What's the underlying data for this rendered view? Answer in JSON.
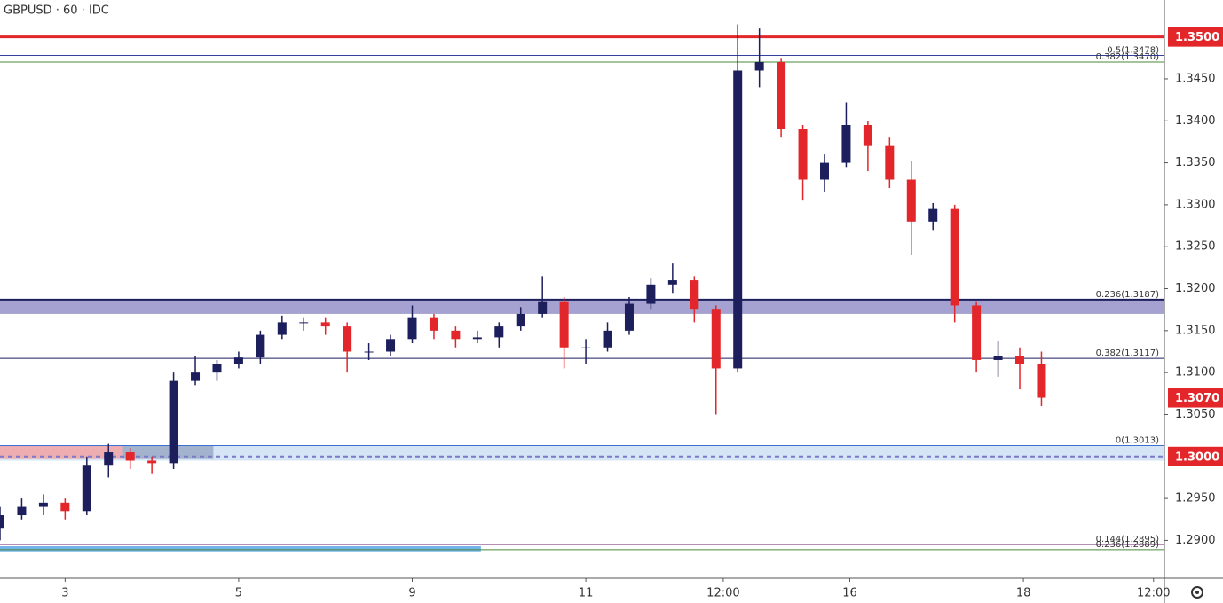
{
  "chart_data": {
    "type": "candlestick",
    "title": "GBPUSD · 60 · IDC",
    "up_color": "#1c1f5c",
    "down_color": "#e3262a",
    "x": [
      0,
      6,
      12,
      18,
      24,
      30,
      36,
      42,
      48,
      54,
      60,
      66,
      72,
      78,
      84,
      90,
      96,
      102,
      108,
      114,
      120,
      126,
      132,
      138,
      144,
      150,
      156,
      162,
      168,
      174,
      180,
      186,
      192,
      198,
      204,
      210,
      216,
      222,
      228,
      234,
      240,
      246,
      252,
      258,
      264,
      270,
      276,
      282,
      288
    ],
    "open": [
      1.2915,
      1.293,
      1.294,
      1.2945,
      1.2935,
      1.299,
      1.3005,
      1.2995,
      1.2992,
      1.309,
      1.31,
      1.311,
      1.3118,
      1.3145,
      1.316,
      1.316,
      1.3155,
      1.3125,
      1.3125,
      1.314,
      1.3165,
      1.315,
      1.314,
      1.3142,
      1.3155,
      1.317,
      1.3185,
      1.313,
      1.313,
      1.315,
      1.3182,
      1.3205,
      1.321,
      1.3175,
      1.3105,
      1.346,
      1.347,
      1.339,
      1.333,
      1.335,
      1.3395,
      1.337,
      1.333,
      1.328,
      1.3295,
      1.318,
      1.3115,
      1.312,
      1.311
    ],
    "high": [
      1.294,
      1.295,
      1.2955,
      1.295,
      1.3,
      1.3015,
      1.301,
      1.3,
      1.31,
      1.312,
      1.3115,
      1.3125,
      1.315,
      1.3168,
      1.3165,
      1.3165,
      1.316,
      1.3135,
      1.3145,
      1.318,
      1.317,
      1.3155,
      1.315,
      1.316,
      1.3178,
      1.3215,
      1.319,
      1.314,
      1.316,
      1.319,
      1.3212,
      1.323,
      1.3215,
      1.318,
      1.3515,
      1.351,
      1.3475,
      1.3395,
      1.336,
      1.3422,
      1.34,
      1.338,
      1.3352,
      1.3302,
      1.33,
      1.3185,
      1.3138,
      1.313,
      1.3125
    ],
    "low": [
      1.29,
      1.2925,
      1.293,
      1.2925,
      1.293,
      1.2975,
      1.2985,
      1.298,
      1.2985,
      1.3085,
      1.309,
      1.3105,
      1.311,
      1.314,
      1.315,
      1.3145,
      1.31,
      1.3115,
      1.312,
      1.3135,
      1.314,
      1.313,
      1.3135,
      1.313,
      1.315,
      1.3165,
      1.3105,
      1.311,
      1.3125,
      1.3145,
      1.3175,
      1.3195,
      1.316,
      1.305,
      1.31,
      1.344,
      1.338,
      1.3305,
      1.3315,
      1.3345,
      1.334,
      1.332,
      1.324,
      1.327,
      1.316,
      1.31,
      1.3095,
      1.308,
      1.306
    ],
    "close": [
      1.293,
      1.294,
      1.2945,
      1.2935,
      1.299,
      1.3005,
      1.2995,
      1.2992,
      1.309,
      1.31,
      1.311,
      1.3118,
      1.3145,
      1.316,
      1.316,
      1.3155,
      1.3125,
      1.3125,
      1.314,
      1.3165,
      1.315,
      1.314,
      1.3142,
      1.3155,
      1.317,
      1.3185,
      1.313,
      1.313,
      1.315,
      1.3182,
      1.3205,
      1.321,
      1.3175,
      1.3105,
      1.346,
      1.347,
      1.339,
      1.333,
      1.335,
      1.3395,
      1.337,
      1.333,
      1.328,
      1.3295,
      1.318,
      1.3115,
      1.312,
      1.311,
      1.307
    ],
    "xlim": [
      0,
      322
    ],
    "ylim": [
      1.2855,
      1.3544
    ],
    "xticks": [
      {
        "value": 18,
        "label": "3"
      },
      {
        "value": 66,
        "label": "5"
      },
      {
        "value": 114,
        "label": "9"
      },
      {
        "value": 162,
        "label": "11"
      },
      {
        "value": 200,
        "label": "12:00"
      },
      {
        "value": 235,
        "label": "16"
      },
      {
        "value": 283,
        "label": "18"
      },
      {
        "value": 319,
        "label": "12:00"
      }
    ],
    "yticks": [
      {
        "value": 1.29,
        "label": "1.2900"
      },
      {
        "value": 1.295,
        "label": "1.2950"
      },
      {
        "value": 1.305,
        "label": "1.3050"
      },
      {
        "value": 1.31,
        "label": "1.3100"
      },
      {
        "value": 1.315,
        "label": "1.3150"
      },
      {
        "value": 1.32,
        "label": "1.3200"
      },
      {
        "value": 1.325,
        "label": "1.3250"
      },
      {
        "value": 1.33,
        "label": "1.3300"
      },
      {
        "value": 1.335,
        "label": "1.3350"
      },
      {
        "value": 1.34,
        "label": "1.3400"
      },
      {
        "value": 1.345,
        "label": "1.3450"
      }
    ],
    "zones": [
      {
        "y": [
          1.317,
          1.3187
        ],
        "color": "#9590c8"
      },
      {
        "y": [
          1.2995,
          1.3013
        ],
        "color": "#cfe0f5"
      },
      {
        "y": [
          1.2997,
          1.3013
        ],
        "x": [
          0,
          34
        ],
        "color": "#f2a3a3"
      },
      {
        "y": [
          1.2997,
          1.3013
        ],
        "x": [
          34,
          59
        ],
        "color": "#9aa9c6"
      },
      {
        "y": [
          1.2887,
          1.2893
        ],
        "x": [
          0,
          133
        ],
        "color": "#5aa7e6"
      }
    ],
    "levels": [
      {
        "value": 1.35,
        "color": "#e3262a",
        "width": 3
      },
      {
        "value": 1.3478,
        "label": "0.5(1.3478)",
        "color": "#3340a0",
        "width": 1
      },
      {
        "value": 1.347,
        "label": "0.382(1.3470)",
        "color": "#4a8a3a",
        "width": 1
      },
      {
        "value": 1.3187,
        "label": "0.236(1.3187)",
        "color": "#1c1f5c",
        "width": 2
      },
      {
        "value": 1.3117,
        "label": "0.382(1.3117)",
        "color": "#1c1f5c",
        "width": 1
      },
      {
        "value": 1.3013,
        "label": "0(1.3013)",
        "color": "#3d6fd1",
        "width": 1
      },
      {
        "value": 1.3,
        "color": "#7a7ac8",
        "width": 2,
        "dash": true
      },
      {
        "value": 1.2895,
        "label": "0.144(1.2895)",
        "color": "#8a4a8a",
        "width": 1
      },
      {
        "value": 1.2889,
        "label": "0.236(1.2889)",
        "color": "#4a8a3a",
        "width": 1
      }
    ],
    "price_labels": [
      {
        "value": 1.35,
        "label": "1.3500",
        "color": "#e3262a"
      },
      {
        "value": 1.307,
        "label": "1.3070",
        "color": "#e3262a"
      },
      {
        "value": 1.3,
        "label": "1.3000",
        "color": "#e3262a"
      }
    ]
  }
}
